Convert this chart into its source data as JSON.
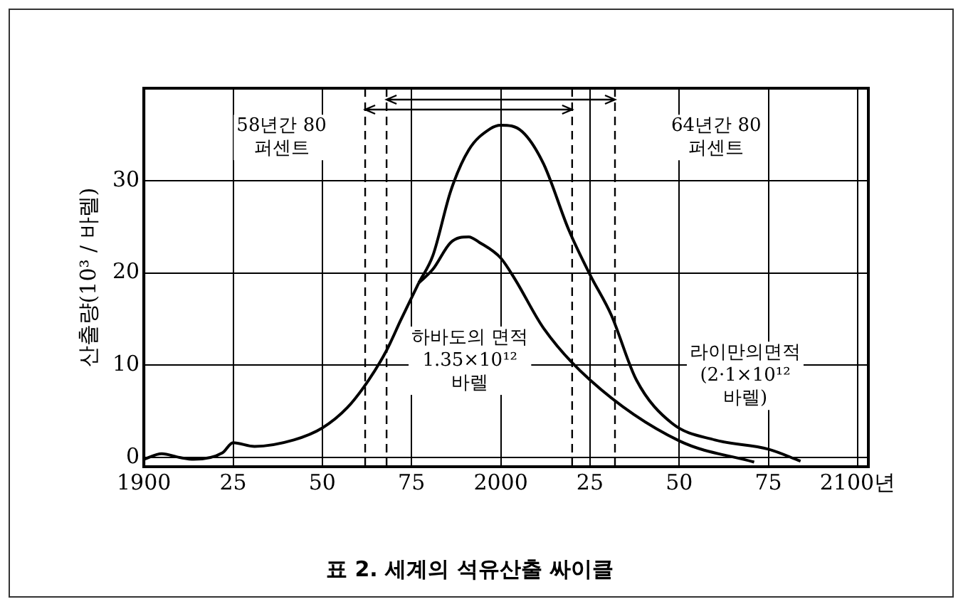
{
  "chart_data": {
    "type": "line",
    "title": "표 2. 세계의 석유산출 싸이클",
    "ylabel": "산출량(10³ / 바렐)",
    "xlim": [
      1900,
      2103
    ],
    "ylim": [
      -1,
      40
    ],
    "xticks": [
      {
        "value": 1900,
        "label": "1900"
      },
      {
        "value": 1925,
        "label": "25"
      },
      {
        "value": 1950,
        "label": "50"
      },
      {
        "value": 1975,
        "label": "75"
      },
      2000,
      {
        "value": 2025,
        "label": "25"
      },
      {
        "value": 2050,
        "label": "50"
      },
      {
        "value": 2075,
        "label": "75"
      },
      {
        "value": 2100,
        "label": "2100년"
      }
    ],
    "yticks": [
      0,
      10,
      20,
      30
    ],
    "grid": true,
    "legend": false,
    "marker": "none",
    "line_style": "solid",
    "series": [
      {
        "color": "#000000",
        "x": [
          1900,
          1905,
          1910,
          1914,
          1922,
          1925,
          1931,
          1942,
          1950,
          1957,
          1963,
          1968,
          1972,
          1977
        ],
        "values": [
          -0.2,
          0.4,
          0,
          -0.2,
          0.5,
          1.6,
          1.2,
          1.9,
          3.2,
          5.4,
          8.4,
          11.6,
          14.9,
          18.9
        ]
      },
      {
        "color": "#000000",
        "x": [
          1977,
          1981,
          1986,
          1991,
          1994,
          2000,
          2004,
          2012,
          2025,
          2050,
          2071
        ],
        "values": [
          18.9,
          20.4,
          23.3,
          23.9,
          23.3,
          21.6,
          19.3,
          14,
          8.4,
          1.8,
          -0.5
        ]
      },
      {
        "color": "#000000",
        "x": [
          1977,
          1981,
          1986,
          1991,
          1997,
          2000,
          2006,
          2012,
          2019,
          2025,
          2031,
          2038,
          2048,
          2060,
          2075,
          2084
        ],
        "values": [
          18.9,
          21.9,
          28.9,
          33.3,
          35.6,
          36,
          35.3,
          31.8,
          24.7,
          19.8,
          15.4,
          8.4,
          3.7,
          1.9,
          0.9,
          -0.4
        ]
      }
    ],
    "ref_lines": [
      {
        "axis": "x",
        "value": 1962,
        "line_style": "dashed"
      },
      {
        "axis": "x",
        "value": 1968,
        "line_style": "dashed"
      },
      {
        "axis": "x",
        "value": 2020,
        "line_style": "dashed"
      },
      {
        "axis": "x",
        "value": 2032,
        "line_style": "dashed"
      }
    ],
    "annotations": [
      "58년간 80\n퍼센트",
      "64년간 80\n퍼센트",
      "하바도의 면적\n1.35×10¹²\n바렐",
      "라이만의면적\n(2·1×10¹²\n바렐)"
    ]
  }
}
